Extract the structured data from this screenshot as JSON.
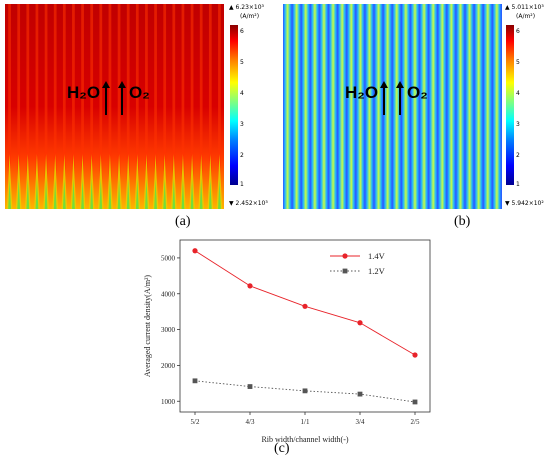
{
  "panel_a": {
    "label": "(a)",
    "colorbar": {
      "max_label": "▲ 6.23×10³",
      "unit": "(A/m²)",
      "min_label": "▼ 2.452×10³",
      "ticks": [
        "6",
        "5",
        "4",
        "3",
        "2",
        "1"
      ]
    },
    "flow_left": "H₂O",
    "flow_right": "O₂"
  },
  "panel_b": {
    "label": "(b)",
    "colorbar": {
      "max_label": "▲ 5.011×10³",
      "unit": "(A/m²)",
      "min_label": "▼ 5.942×10²",
      "ticks": [
        "6",
        "5",
        "4",
        "3",
        "2",
        "1"
      ]
    },
    "flow_left": "H₂O",
    "flow_right": "O₂"
  },
  "panel_c": {
    "label": "(c)"
  },
  "chart_data": {
    "type": "line",
    "categories": [
      "5/2",
      "4/3",
      "1/1",
      "3/4",
      "2/5"
    ],
    "series": [
      {
        "name": "1.4V",
        "values": [
          5200,
          4220,
          3650,
          3190,
          2290
        ],
        "color": "#e8232a",
        "marker": "circle",
        "line": "solid"
      },
      {
        "name": "1.2V",
        "values": [
          1570,
          1410,
          1290,
          1200,
          980
        ],
        "color": "#555555",
        "marker": "square",
        "line": "dotted"
      }
    ],
    "xlabel": "Rib width/channel width(-)",
    "ylabel": "Averaged current density(A/m²)",
    "yticks": [
      1000,
      2000,
      3000,
      4000,
      5000
    ],
    "ylim": [
      700,
      5500
    ],
    "legend": "top-right"
  }
}
